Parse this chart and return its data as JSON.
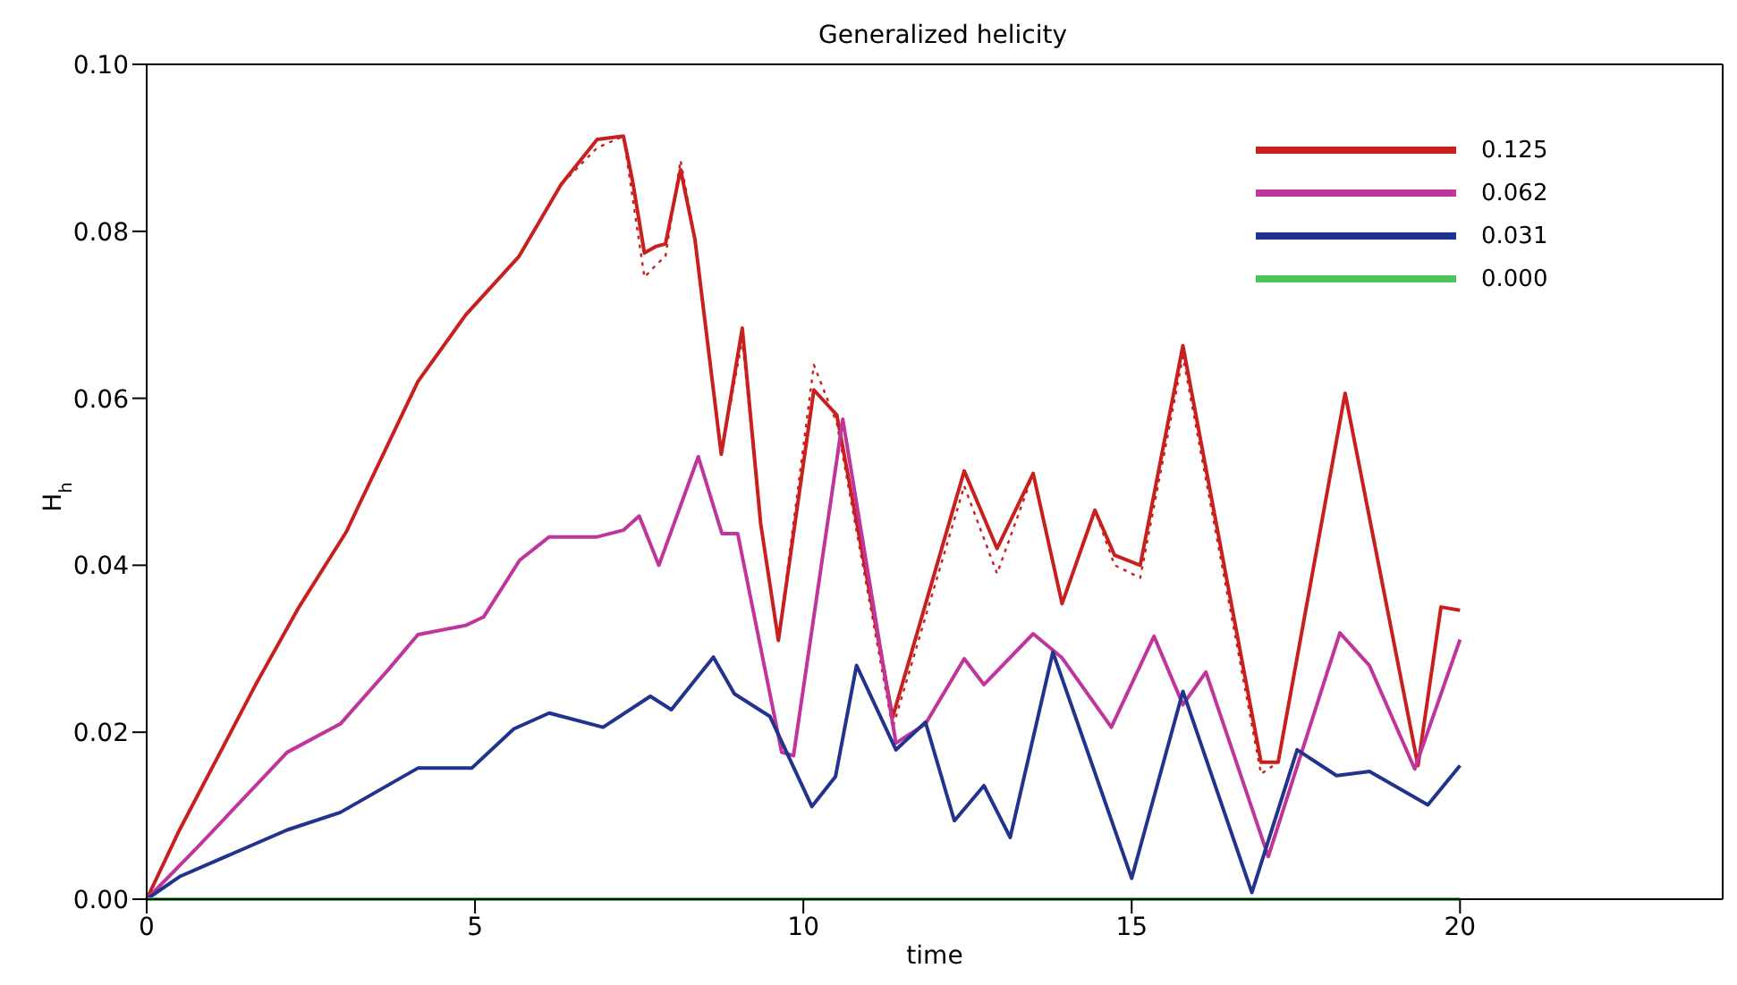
{
  "chart_data": {
    "type": "line",
    "title": "Generalized helicity",
    "xlabel": "time",
    "ylabel": "H$_{h}$",
    "xlim": [
      0,
      24
    ],
    "xticks": [
      0,
      5,
      10,
      15,
      20
    ],
    "ylim": [
      0,
      0.1
    ],
    "yticks": [
      {
        "value": 0,
        "label": "0.00"
      },
      {
        "value": 0.02,
        "label": "0.02"
      },
      {
        "value": 0.04,
        "label": "0.04"
      },
      {
        "value": 0.06,
        "label": "0.06"
      },
      {
        "value": 0.08,
        "label": "0.08"
      },
      {
        "value": 0.1,
        "label": "0.10"
      }
    ],
    "legend": "top right",
    "line_style": "solid",
    "series": [
      {
        "name": "0.125",
        "color": "#c8201e",
        "x": [
          0,
          0.5,
          1.68,
          2.32,
          3.04,
          3.22,
          4.13,
          4.86,
          5.67,
          6.31,
          6.86,
          7.26,
          7.4,
          7.58,
          7.76,
          7.9,
          8.13,
          8.35,
          8.75,
          9.07,
          9.35,
          9.62,
          10.16,
          10.51,
          11.36,
          12.45,
          12.95,
          13.5,
          13.94,
          14.44,
          14.74,
          15.13,
          15.78,
          16.97,
          17.23,
          18.25,
          19.36,
          19.71,
          20
        ],
        "values": [
          0,
          0.0083,
          0.026,
          0.035,
          0.044,
          0.047,
          0.062,
          0.07,
          0.077,
          0.0856,
          0.091,
          0.0914,
          0.086,
          0.0774,
          0.0782,
          0.0785,
          0.0874,
          0.079,
          0.0533,
          0.0684,
          0.045,
          0.031,
          0.061,
          0.058,
          0.0218,
          0.0513,
          0.042,
          0.051,
          0.0354,
          0.0466,
          0.0412,
          0.04,
          0.0663,
          0.0164,
          0.0164,
          0.0606,
          0.016,
          0.035,
          0.0346
        ]
      },
      {
        "color": "#c8201e",
        "line_style": "dotted",
        "x": [
          0,
          0.5,
          1.68,
          2.32,
          3.04,
          3.22,
          4.13,
          4.86,
          5.67,
          6.31,
          6.86,
          7.26,
          7.4,
          7.58,
          7.76,
          7.9,
          8.13,
          8.35,
          8.75,
          9.07,
          9.35,
          9.62,
          10.16,
          10.51,
          11.36,
          12.45,
          12.95,
          13.5,
          13.94,
          14.44,
          14.74,
          15.13,
          15.78,
          16.97,
          17.23,
          18.25,
          19.36,
          19.71,
          20
        ],
        "values": [
          0,
          0.0083,
          0.026,
          0.035,
          0.044,
          0.047,
          0.062,
          0.07,
          0.077,
          0.0856,
          0.09,
          0.0914,
          0.084,
          0.0745,
          0.076,
          0.077,
          0.0885,
          0.079,
          0.0533,
          0.067,
          0.045,
          0.031,
          0.064,
          0.057,
          0.0205,
          0.0495,
          0.039,
          0.051,
          0.0354,
          0.0466,
          0.04,
          0.0385,
          0.065,
          0.015,
          0.0164,
          0.0606,
          0.016,
          0.035,
          0.0346
        ]
      },
      {
        "name": "0.062",
        "color": "#c0359c",
        "x": [
          0,
          0.77,
          2.14,
          2.95,
          3.68,
          4.13,
          4.86,
          5.13,
          5.68,
          6.13,
          6.86,
          7.26,
          7.5,
          7.8,
          8.4,
          8.76,
          9.0,
          9.67,
          9.85,
          10.6,
          11.41,
          11.86,
          12.45,
          12.75,
          13.5,
          13.94,
          14.69,
          15.34,
          15.78,
          16.13,
          17.08,
          18.17,
          18.62,
          19.31,
          20
        ],
        "values": [
          0,
          0.0062,
          0.0176,
          0.021,
          0.0275,
          0.0317,
          0.0328,
          0.0338,
          0.0406,
          0.0434,
          0.0434,
          0.0442,
          0.0459,
          0.04,
          0.053,
          0.0438,
          0.0438,
          0.0176,
          0.0172,
          0.0575,
          0.0187,
          0.021,
          0.0288,
          0.0257,
          0.0318,
          0.0289,
          0.0206,
          0.0315,
          0.0233,
          0.0272,
          0.0051,
          0.0319,
          0.028,
          0.0156,
          0.0311
        ]
      },
      {
        "name": "0.031",
        "color": "#22338e",
        "x": [
          0,
          0.5,
          2.14,
          2.95,
          4.13,
          4.95,
          5.59,
          6.13,
          6.95,
          7.67,
          7.99,
          8.63,
          8.95,
          9.49,
          10.13,
          10.49,
          10.81,
          11.41,
          11.86,
          12.3,
          12.75,
          13.15,
          13.8,
          15.0,
          15.78,
          16.83,
          17.52,
          18.12,
          18.62,
          19.51,
          20
        ],
        "values": [
          0,
          0.0027,
          0.0083,
          0.0104,
          0.0157,
          0.0157,
          0.0204,
          0.0223,
          0.0206,
          0.0243,
          0.0227,
          0.029,
          0.0246,
          0.0219,
          0.0111,
          0.0147,
          0.028,
          0.0179,
          0.0212,
          0.0094,
          0.0136,
          0.0074,
          0.0296,
          0.0025,
          0.0249,
          0.0008,
          0.0179,
          0.0148,
          0.0153,
          0.0113,
          0.016
        ]
      },
      {
        "name": "0.000",
        "color": "#4cc45a",
        "x": [
          0,
          20
        ],
        "values": [
          0,
          0
        ]
      }
    ]
  }
}
